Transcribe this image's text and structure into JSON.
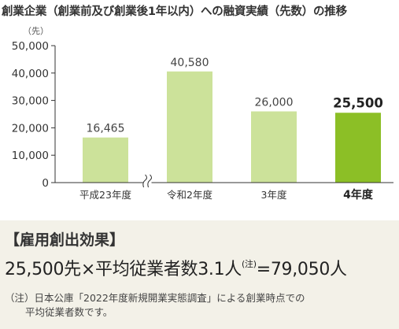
{
  "chart_data": {
    "type": "bar",
    "title": "創業企業（創業前及び創業後1年以内）への融資実績（先数）の推移",
    "ylabel": "（先）",
    "xlabel": "",
    "categories": [
      "平成23年度",
      "令和2年度",
      "3年度",
      "4年度"
    ],
    "values": [
      16465,
      40580,
      26000,
      25500
    ],
    "value_labels": [
      "16,465",
      "40,580",
      "26,000",
      "25,500"
    ],
    "ylim": [
      0,
      50000
    ],
    "yticks": [
      0,
      10000,
      20000,
      30000,
      40000,
      50000
    ],
    "ytick_labels": [
      "0",
      "10,000",
      "20,000",
      "30,000",
      "40,000",
      "50,000"
    ],
    "grid": false,
    "axis_break_after_category": 0,
    "highlight_index": 3,
    "colors": {
      "bar": "#cce29a",
      "highlight": "#8cbf26"
    }
  },
  "effect": {
    "heading": "【雇用創出効果】",
    "formula_main": "25,500先×平均従業者数3.1人",
    "formula_note_mark": "(注)",
    "formula_result": "=79,050人",
    "note_line_1": "（注）日本公庫「2022年度新規開業実態調査」による創業時点での",
    "note_line_2": "平均従業者数です。"
  }
}
